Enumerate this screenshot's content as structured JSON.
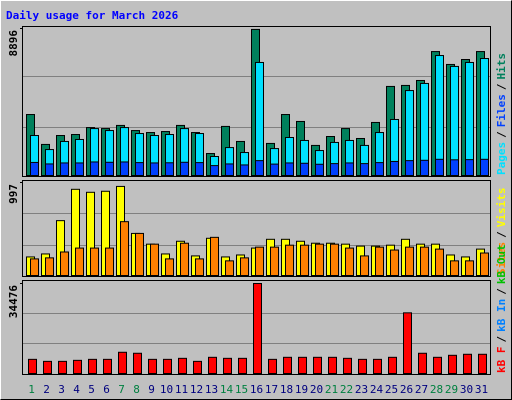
{
  "legend_separator": "/",
  "chart_data": [
    {
      "type": "bar",
      "title": "Daily usage for March 2026",
      "ylim": [
        0,
        8896
      ],
      "yticks": [
        8896
      ],
      "series": [
        {
          "name": "Pages",
          "color": "#00E0FF",
          "values": [
            2420,
            1570,
            2060,
            2180,
            2840,
            2720,
            2900,
            2540,
            2420,
            2480,
            2840,
            2540,
            1150,
            1690,
            1390,
            6840,
            1630,
            2300,
            2120,
            1510,
            2000,
            2120,
            1820,
            2600,
            3390,
            5140,
            5570,
            7260,
            6600,
            6840,
            7080
          ]
        },
        {
          "name": "Files",
          "color": "#0040FF",
          "values": [
            790,
            700,
            760,
            760,
            820,
            800,
            820,
            780,
            760,
            770,
            800,
            780,
            600,
            700,
            640,
            900,
            690,
            760,
            740,
            680,
            720,
            760,
            720,
            780,
            850,
            900,
            920,
            980,
            950,
            960,
            980
          ]
        },
        {
          "name": "Hits",
          "color": "#00805C",
          "values": [
            3690,
            1880,
            2420,
            2480,
            2900,
            2840,
            3030,
            2720,
            2600,
            2660,
            3030,
            2600,
            1330,
            2970,
            2060,
            8840,
            1940,
            3690,
            3270,
            1820,
            2360,
            2840,
            2240,
            3210,
            5390,
            5450,
            5750,
            7500,
            6720,
            7020,
            7500
          ]
        }
      ]
    },
    {
      "type": "bar",
      "ylim": [
        0,
        997
      ],
      "yticks": [
        997
      ],
      "series": [
        {
          "name": "Sites",
          "color": "#FF8000",
          "values": [
            178,
            189,
            252,
            294,
            294,
            294,
            577,
            451,
            336,
            178,
            346,
            178,
            409,
            157,
            189,
            304,
            304,
            325,
            325,
            336,
            336,
            294,
            210,
            304,
            273,
            304,
            304,
            283,
            157,
            157,
            241
          ]
        },
        {
          "name": "Visits",
          "color": "#FFFF00",
          "values": [
            199,
            231,
            588,
            924,
            892,
            903,
            955,
            451,
            336,
            231,
            367,
            210,
            399,
            199,
            220,
            294,
            388,
            388,
            367,
            346,
            346,
            336,
            315,
            315,
            325,
            388,
            336,
            336,
            220,
            199,
            283
          ]
        }
      ]
    },
    {
      "type": "bar",
      "categories": [
        "1",
        "2",
        "3",
        "4",
        "5",
        "6",
        "7",
        "8",
        "9",
        "10",
        "11",
        "12",
        "13",
        "14",
        "15",
        "16",
        "17",
        "18",
        "19",
        "20",
        "21",
        "22",
        "23",
        "24",
        "25",
        "26",
        "27",
        "28",
        "29",
        "30",
        "31"
      ],
      "category_colors": [
        "#008040",
        "#00007F",
        "#00007F",
        "#00007F",
        "#00007F",
        "#00007F",
        "#008040",
        "#008040",
        "#00007F",
        "#00007F",
        "#00007F",
        "#00007F",
        "#00007F",
        "#008040",
        "#008040",
        "#00007F",
        "#00007F",
        "#00007F",
        "#00007F",
        "#00007F",
        "#008040",
        "#008040",
        "#00007F",
        "#00007F",
        "#00007F",
        "#00007F",
        "#00007F",
        "#008040",
        "#008040",
        "#00007F",
        "#00007F"
      ],
      "ylim": [
        0,
        34476
      ],
      "yticks": [
        34476
      ],
      "series": [
        {
          "name": "kB F",
          "color": "#FF0000",
          "values": [
            5420,
            4650,
            4650,
            5040,
            5420,
            5420,
            8130,
            7750,
            5420,
            5420,
            5810,
            4650,
            6200,
            5810,
            5810,
            34476,
            5420,
            6200,
            6200,
            6200,
            6200,
            5810,
            5420,
            5420,
            6200,
            23240,
            7750,
            6200,
            6970,
            7360,
            7360
          ]
        },
        {
          "name": "kB In",
          "color": "#0080FF",
          "values": [
            0,
            0,
            0,
            0,
            0,
            0,
            0,
            0,
            0,
            0,
            0,
            0,
            0,
            0,
            0,
            0,
            0,
            0,
            0,
            0,
            0,
            0,
            0,
            0,
            0,
            0,
            0,
            0,
            0,
            0,
            0
          ]
        },
        {
          "name": "kB Out",
          "color": "#00C000",
          "values": [
            0,
            0,
            0,
            0,
            0,
            0,
            0,
            0,
            0,
            0,
            0,
            0,
            0,
            0,
            0,
            0,
            0,
            0,
            0,
            0,
            0,
            0,
            0,
            0,
            0,
            0,
            0,
            0,
            0,
            0,
            0
          ]
        }
      ]
    }
  ]
}
